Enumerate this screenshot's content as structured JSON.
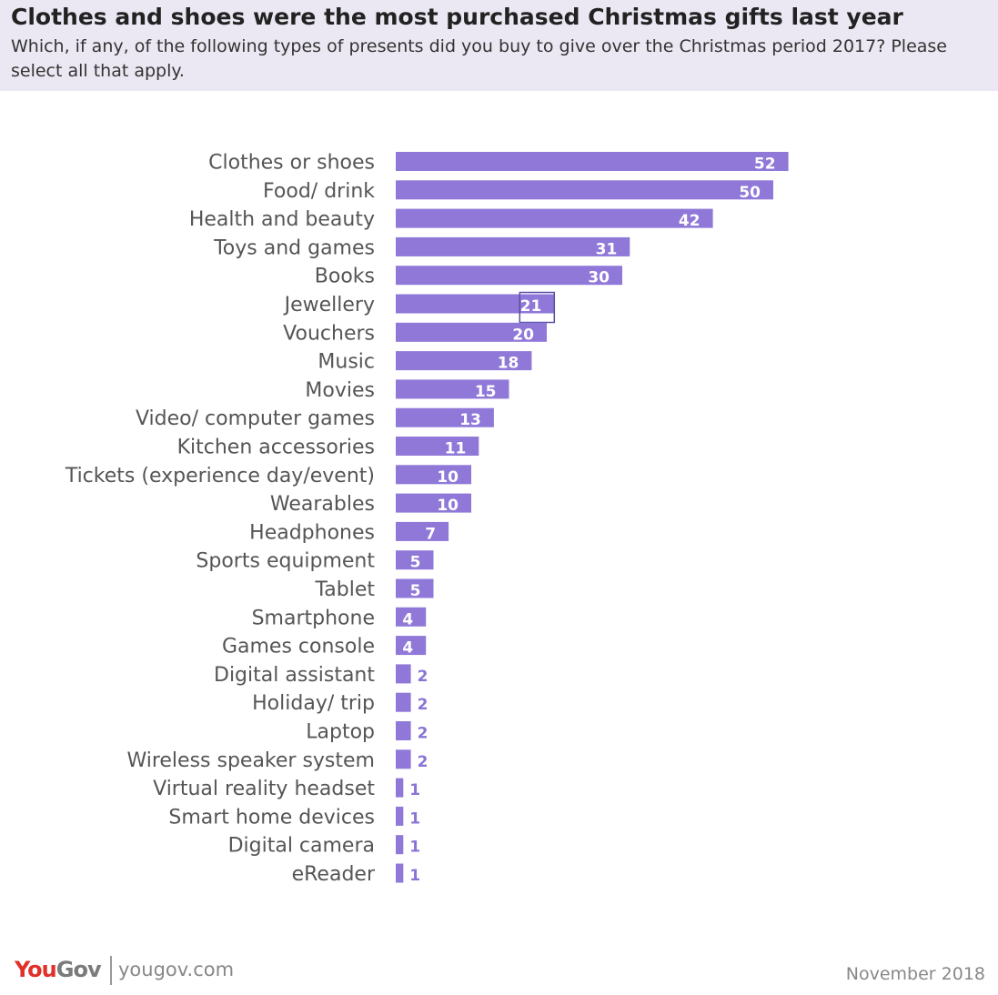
{
  "header": {
    "title": "Clothes and shoes were the most purchased Christmas gifts last year",
    "subtitle": "Which, if any, of the following types of presents did you buy to give over the Christmas period 2017? Please select all that apply."
  },
  "footer": {
    "logo_you": "You",
    "logo_gov": "Gov",
    "site": "yougov.com",
    "date": "November 2018"
  },
  "colors": {
    "bar": "#8f78d8",
    "header_background": "#ebe8f3",
    "value_outside": "#8a74d4",
    "logo_red": "#e0302a"
  },
  "chart_data": {
    "type": "bar",
    "orientation": "horizontal",
    "categories": [
      "Clothes or shoes",
      "Food/ drink",
      "Health and beauty",
      "Toys and games",
      "Books",
      "Jewellery",
      "Vouchers",
      "Music",
      "Movies",
      "Video/ computer games",
      "Kitchen accessories",
      "Tickets (experience day/event)",
      "Wearables",
      "Headphones",
      "Sports equipment",
      "Tablet",
      "Smartphone",
      "Games console",
      "Digital assistant",
      "Holiday/ trip",
      "Laptop",
      "Wireless speaker system",
      "Virtual reality headset",
      "Smart home devices",
      "Digital camera",
      "eReader"
    ],
    "values": [
      52,
      50,
      42,
      31,
      30,
      21,
      20,
      18,
      15,
      13,
      11,
      10,
      10,
      7,
      5,
      5,
      4,
      4,
      2,
      2,
      2,
      2,
      1,
      1,
      1,
      1
    ],
    "highlighted_category": "Jewellery",
    "title": "",
    "xlabel": "",
    "ylabel": "",
    "grid": false,
    "legend": "none"
  }
}
